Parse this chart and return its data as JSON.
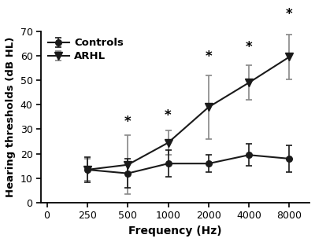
{
  "x_positions": [
    0,
    1,
    2,
    3,
    4,
    5,
    6
  ],
  "x_labels": [
    "0",
    "250",
    "500",
    "1000",
    "2000",
    "4000",
    "8000"
  ],
  "data_x_positions": [
    1,
    2,
    3,
    4,
    5,
    6
  ],
  "controls_mean": [
    13.5,
    12.0,
    16.0,
    16.0,
    19.5,
    18.0
  ],
  "controls_err": [
    5.0,
    6.0,
    5.5,
    3.5,
    4.5,
    5.5
  ],
  "arhl_mean": [
    13.5,
    15.5,
    24.5,
    39.0,
    49.0,
    59.5
  ],
  "arhl_err": [
    4.5,
    12.0,
    5.0,
    13.0,
    7.0,
    9.0
  ],
  "star_data_x": [
    2,
    3,
    4,
    5,
    6
  ],
  "star_y_offsets": [
    5.5,
    6.0,
    7.5,
    7.5,
    8.5
  ],
  "ylabel": "Hearing thresholds (dB HL)",
  "xlabel": "Frequency (Hz)",
  "ylim": [
    0,
    70
  ],
  "yticks": [
    0,
    10,
    20,
    30,
    40,
    50,
    60,
    70
  ],
  "legend_controls": "Controls",
  "legend_arhl": "ARHL",
  "line_color": "#1a1a1a",
  "arhl_err_color": "#888888",
  "ctrl_err_color": "#1a1a1a",
  "bg_color": "#ffffff"
}
